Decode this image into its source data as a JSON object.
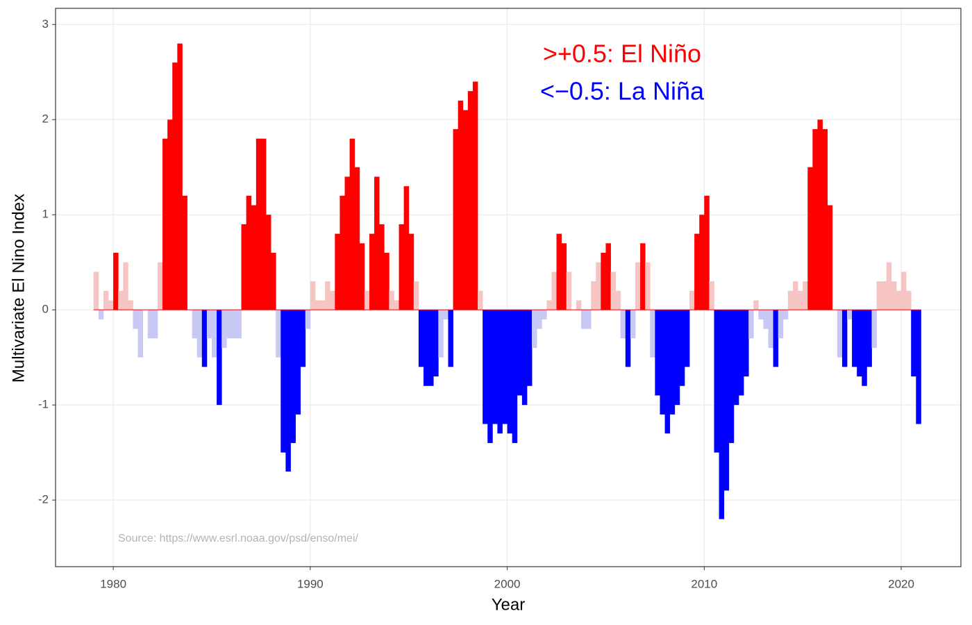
{
  "chart_data": {
    "type": "bar",
    "x_label": "Year",
    "y_label": "Multivariate El Nino Index",
    "annotations": [
      ">+0.5: El Niño",
      "<−0.5: La Niña"
    ],
    "source": "Source: https://www.esrl.noaa.gov/psd/enso/mei/",
    "threshold": 0.5,
    "colors": {
      "strong_pos": "#ff0000",
      "weak_pos": "#f7c4c4",
      "weak_neg": "#c8c8f4",
      "strong_neg": "#0000ff",
      "annotation_pos": "#ff0000",
      "annotation_neg": "#0000ff"
    },
    "grid": true,
    "xlim": [
      1977.07,
      2023.03
    ],
    "ylim": [
      -2.7,
      3.17
    ],
    "xticks": [
      1980,
      1990,
      2000,
      2010,
      2020
    ],
    "yticks": [
      -2,
      -1,
      0,
      1,
      2,
      3
    ],
    "x": [
      1979,
      1979.25,
      1979.5,
      1979.75,
      1980,
      1980.25,
      1980.5,
      1980.75,
      1981,
      1981.25,
      1981.5,
      1981.75,
      1982,
      1982.25,
      1982.5,
      1982.75,
      1983,
      1983.25,
      1983.5,
      1983.75,
      1984,
      1984.25,
      1984.5,
      1984.75,
      1985,
      1985.25,
      1985.5,
      1985.75,
      1986,
      1986.25,
      1986.5,
      1986.75,
      1987,
      1987.25,
      1987.5,
      1987.75,
      1988,
      1988.25,
      1988.5,
      1988.75,
      1989,
      1989.25,
      1989.5,
      1989.75,
      1990,
      1990.25,
      1990.5,
      1990.75,
      1991,
      1991.25,
      1991.5,
      1991.75,
      1992,
      1992.25,
      1992.5,
      1992.75,
      1993,
      1993.25,
      1993.5,
      1993.75,
      1994,
      1994.25,
      1994.5,
      1994.75,
      1995,
      1995.25,
      1995.5,
      1995.75,
      1996,
      1996.25,
      1996.5,
      1996.75,
      1997,
      1997.25,
      1997.5,
      1997.75,
      1998,
      1998.25,
      1998.5,
      1998.75,
      1999,
      1999.25,
      1999.5,
      1999.75,
      2000,
      2000.25,
      2000.5,
      2000.75,
      2001,
      2001.25,
      2001.5,
      2001.75,
      2002,
      2002.25,
      2002.5,
      2002.75,
      2003,
      2003.25,
      2003.5,
      2003.75,
      2004,
      2004.25,
      2004.5,
      2004.75,
      2005,
      2005.25,
      2005.5,
      2005.75,
      2006,
      2006.25,
      2006.5,
      2006.75,
      2007,
      2007.25,
      2007.5,
      2007.75,
      2008,
      2008.25,
      2008.5,
      2008.75,
      2009,
      2009.25,
      2009.5,
      2009.75,
      2010,
      2010.25,
      2010.5,
      2010.75,
      2011,
      2011.25,
      2011.5,
      2011.75,
      2012,
      2012.25,
      2012.5,
      2012.75,
      2013,
      2013.25,
      2013.5,
      2013.75,
      2014,
      2014.25,
      2014.5,
      2014.75,
      2015,
      2015.25,
      2015.5,
      2015.75,
      2016,
      2016.25,
      2016.5,
      2016.75,
      2017,
      2017.25,
      2017.5,
      2017.75,
      2018,
      2018.25,
      2018.5,
      2018.75,
      2019,
      2019.25,
      2019.5,
      2019.75,
      2020,
      2020.25,
      2020.5,
      2020.75
    ],
    "values": [
      0.4,
      -0.1,
      0.2,
      0.1,
      0.6,
      0.2,
      0.5,
      0.1,
      -0.2,
      -0.5,
      0.0,
      -0.3,
      -0.3,
      0.5,
      1.8,
      2.0,
      2.6,
      2.8,
      1.2,
      0.0,
      -0.3,
      -0.5,
      -0.6,
      -0.3,
      -0.5,
      -1.0,
      -0.4,
      -0.3,
      -0.3,
      -0.3,
      0.9,
      1.2,
      1.1,
      1.8,
      1.8,
      1.0,
      0.6,
      -0.5,
      -1.5,
      -1.7,
      -1.4,
      -1.1,
      -0.6,
      -0.2,
      0.3,
      0.1,
      0.1,
      0.3,
      0.2,
      0.8,
      1.2,
      1.4,
      1.8,
      1.5,
      0.7,
      0.2,
      0.8,
      1.4,
      0.9,
      0.6,
      0.2,
      0.1,
      0.9,
      1.3,
      0.8,
      0.3,
      -0.6,
      -0.8,
      -0.8,
      -0.7,
      -0.5,
      -0.1,
      -0.6,
      1.9,
      2.2,
      2.1,
      2.3,
      2.4,
      0.2,
      -1.2,
      -1.4,
      -1.2,
      -1.3,
      -1.2,
      -1.3,
      -1.4,
      -0.9,
      -1.0,
      -0.8,
      -0.4,
      -0.2,
      -0.1,
      0.1,
      0.4,
      0.8,
      0.7,
      0.4,
      0.0,
      0.1,
      -0.2,
      -0.2,
      0.3,
      0.5,
      0.6,
      0.7,
      0.4,
      0.2,
      -0.3,
      -0.6,
      -0.3,
      0.5,
      0.7,
      0.5,
      -0.5,
      -0.9,
      -1.1,
      -1.3,
      -1.1,
      -1.0,
      -0.8,
      -0.6,
      0.2,
      0.8,
      1.0,
      1.2,
      0.3,
      -1.5,
      -2.2,
      -1.9,
      -1.4,
      -1.0,
      -0.9,
      -0.7,
      -0.3,
      0.1,
      -0.1,
      -0.2,
      -0.4,
      -0.6,
      -0.3,
      -0.1,
      0.2,
      0.3,
      0.2,
      0.3,
      1.5,
      1.9,
      2.0,
      1.9,
      1.1,
      0.0,
      -0.5,
      -0.6,
      -0.1,
      -0.6,
      -0.7,
      -0.8,
      -0.6,
      -0.4,
      0.3,
      0.3,
      0.5,
      0.3,
      0.2,
      0.4,
      0.2,
      -0.7,
      -1.2
    ]
  }
}
